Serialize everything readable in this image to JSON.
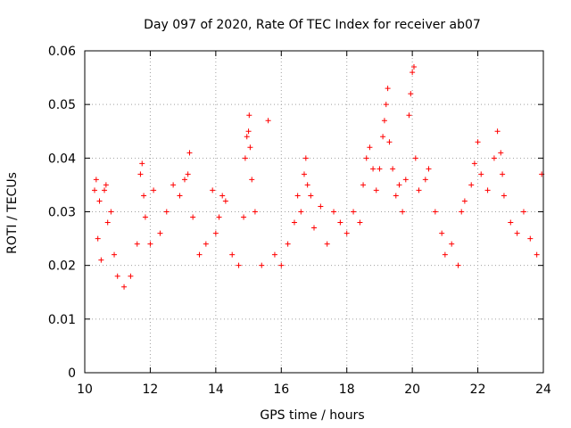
{
  "chart_data": {
    "type": "scatter",
    "title": "Day 097 of 2020, Rate Of TEC Index for receiver ab07",
    "xlabel": "GPS time / hours",
    "ylabel": "ROTI / TECUs",
    "xlim": [
      10,
      24
    ],
    "ylim": [
      0,
      0.06
    ],
    "x_ticks": [
      "10",
      "12",
      "14",
      "16",
      "18",
      "20",
      "22",
      "24"
    ],
    "y_ticks": [
      "0",
      "0.01",
      "0.02",
      "0.03",
      "0.04",
      "0.05",
      "0.06"
    ],
    "grid": true,
    "marker": "+",
    "series": [
      {
        "name": "ab07",
        "color": "#ff0000",
        "points": [
          [
            10.3,
            0.034
          ],
          [
            10.35,
            0.036
          ],
          [
            10.4,
            0.025
          ],
          [
            10.45,
            0.032
          ],
          [
            10.5,
            0.021
          ],
          [
            10.6,
            0.034
          ],
          [
            10.65,
            0.035
          ],
          [
            10.7,
            0.028
          ],
          [
            10.8,
            0.03
          ],
          [
            10.9,
            0.022
          ],
          [
            11.0,
            0.018
          ],
          [
            11.2,
            0.016
          ],
          [
            11.4,
            0.018
          ],
          [
            11.6,
            0.024
          ],
          [
            11.7,
            0.037
          ],
          [
            11.75,
            0.039
          ],
          [
            11.8,
            0.033
          ],
          [
            11.85,
            0.029
          ],
          [
            12.0,
            0.024
          ],
          [
            12.1,
            0.034
          ],
          [
            12.3,
            0.026
          ],
          [
            12.5,
            0.03
          ],
          [
            12.7,
            0.035
          ],
          [
            12.9,
            0.033
          ],
          [
            13.05,
            0.036
          ],
          [
            13.15,
            0.037
          ],
          [
            13.2,
            0.041
          ],
          [
            13.3,
            0.029
          ],
          [
            13.5,
            0.022
          ],
          [
            13.7,
            0.024
          ],
          [
            13.9,
            0.034
          ],
          [
            14.0,
            0.026
          ],
          [
            14.1,
            0.029
          ],
          [
            14.2,
            0.033
          ],
          [
            14.3,
            0.032
          ],
          [
            14.5,
            0.022
          ],
          [
            14.7,
            0.02
          ],
          [
            14.85,
            0.029
          ],
          [
            14.9,
            0.04
          ],
          [
            14.95,
            0.044
          ],
          [
            15.0,
            0.045
          ],
          [
            15.02,
            0.048
          ],
          [
            15.05,
            0.042
          ],
          [
            15.1,
            0.036
          ],
          [
            15.2,
            0.03
          ],
          [
            15.4,
            0.02
          ],
          [
            15.6,
            0.047
          ],
          [
            15.8,
            0.022
          ],
          [
            16.0,
            0.02
          ],
          [
            16.2,
            0.024
          ],
          [
            16.4,
            0.028
          ],
          [
            16.5,
            0.033
          ],
          [
            16.6,
            0.03
          ],
          [
            16.7,
            0.037
          ],
          [
            16.75,
            0.04
          ],
          [
            16.8,
            0.035
          ],
          [
            16.9,
            0.033
          ],
          [
            17.0,
            0.027
          ],
          [
            17.2,
            0.031
          ],
          [
            17.4,
            0.024
          ],
          [
            17.6,
            0.03
          ],
          [
            17.8,
            0.028
          ],
          [
            18.0,
            0.026
          ],
          [
            18.2,
            0.03
          ],
          [
            18.4,
            0.028
          ],
          [
            18.5,
            0.035
          ],
          [
            18.6,
            0.04
          ],
          [
            18.7,
            0.042
          ],
          [
            18.8,
            0.038
          ],
          [
            18.9,
            0.034
          ],
          [
            19.0,
            0.038
          ],
          [
            19.1,
            0.044
          ],
          [
            19.15,
            0.047
          ],
          [
            19.2,
            0.05
          ],
          [
            19.25,
            0.053
          ],
          [
            19.3,
            0.043
          ],
          [
            19.4,
            0.038
          ],
          [
            19.5,
            0.033
          ],
          [
            19.6,
            0.035
          ],
          [
            19.7,
            0.03
          ],
          [
            19.8,
            0.036
          ],
          [
            19.9,
            0.048
          ],
          [
            19.95,
            0.052
          ],
          [
            20.0,
            0.056
          ],
          [
            20.05,
            0.057
          ],
          [
            20.1,
            0.04
          ],
          [
            20.2,
            0.034
          ],
          [
            20.4,
            0.036
          ],
          [
            20.5,
            0.038
          ],
          [
            20.7,
            0.03
          ],
          [
            20.9,
            0.026
          ],
          [
            21.0,
            0.022
          ],
          [
            21.2,
            0.024
          ],
          [
            21.4,
            0.02
          ],
          [
            21.5,
            0.03
          ],
          [
            21.6,
            0.032
          ],
          [
            21.8,
            0.035
          ],
          [
            21.9,
            0.039
          ],
          [
            22.0,
            0.043
          ],
          [
            22.1,
            0.037
          ],
          [
            22.3,
            0.034
          ],
          [
            22.5,
            0.04
          ],
          [
            22.6,
            0.045
          ],
          [
            22.7,
            0.041
          ],
          [
            22.75,
            0.037
          ],
          [
            22.8,
            0.033
          ],
          [
            23.0,
            0.028
          ],
          [
            23.2,
            0.026
          ],
          [
            23.4,
            0.03
          ],
          [
            23.6,
            0.025
          ],
          [
            23.8,
            0.022
          ],
          [
            23.95,
            0.037
          ]
        ]
      }
    ]
  }
}
